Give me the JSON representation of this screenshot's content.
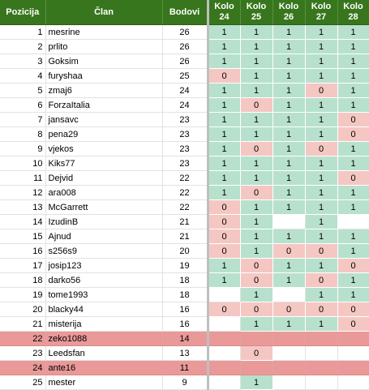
{
  "headers": {
    "position": "Pozicija",
    "member": "Član",
    "points": "Bodovi",
    "rounds": [
      {
        "top": "Kolo",
        "num": "24"
      },
      {
        "top": "Kolo",
        "num": "25"
      },
      {
        "top": "Kolo",
        "num": "26"
      },
      {
        "top": "Kolo",
        "num": "27"
      },
      {
        "top": "Kolo",
        "num": "28"
      }
    ]
  },
  "colors": {
    "header_bg": "#38761d",
    "win_bg": "#b7e1cd",
    "loss_bg": "#f4c7c3",
    "eliminated_bg": "#ea9999"
  },
  "rows": [
    {
      "pos": "1",
      "name": "mesrine",
      "pts": "26",
      "k": [
        "1",
        "1",
        "1",
        "1",
        "1"
      ],
      "elim": false
    },
    {
      "pos": "2",
      "name": "prlito",
      "pts": "26",
      "k": [
        "1",
        "1",
        "1",
        "1",
        "1"
      ],
      "elim": false
    },
    {
      "pos": "3",
      "name": "Goksim",
      "pts": "26",
      "k": [
        "1",
        "1",
        "1",
        "1",
        "1"
      ],
      "elim": false
    },
    {
      "pos": "4",
      "name": "furyshaa",
      "pts": "25",
      "k": [
        "0",
        "1",
        "1",
        "1",
        "1"
      ],
      "elim": false
    },
    {
      "pos": "5",
      "name": "zmaj6",
      "pts": "24",
      "k": [
        "1",
        "1",
        "1",
        "0",
        "1"
      ],
      "elim": false
    },
    {
      "pos": "6",
      "name": "ForzaItalia",
      "pts": "24",
      "k": [
        "1",
        "0",
        "1",
        "1",
        "1"
      ],
      "elim": false
    },
    {
      "pos": "7",
      "name": "jansavc",
      "pts": "23",
      "k": [
        "1",
        "1",
        "1",
        "1",
        "0"
      ],
      "elim": false
    },
    {
      "pos": "8",
      "name": "pena29",
      "pts": "23",
      "k": [
        "1",
        "1",
        "1",
        "1",
        "0"
      ],
      "elim": false
    },
    {
      "pos": "9",
      "name": "vjekos",
      "pts": "23",
      "k": [
        "1",
        "0",
        "1",
        "0",
        "1"
      ],
      "elim": false
    },
    {
      "pos": "10",
      "name": "Kiks77",
      "pts": "23",
      "k": [
        "1",
        "1",
        "1",
        "1",
        "1"
      ],
      "elim": false
    },
    {
      "pos": "11",
      "name": "Dejvid",
      "pts": "22",
      "k": [
        "1",
        "1",
        "1",
        "1",
        "0"
      ],
      "elim": false
    },
    {
      "pos": "12",
      "name": "ara008",
      "pts": "22",
      "k": [
        "1",
        "0",
        "1",
        "1",
        "1"
      ],
      "elim": false
    },
    {
      "pos": "13",
      "name": "McGarrett",
      "pts": "22",
      "k": [
        "0",
        "1",
        "1",
        "1",
        "1"
      ],
      "elim": false
    },
    {
      "pos": "14",
      "name": "IzudinB",
      "pts": "21",
      "k": [
        "0",
        "1",
        "",
        "1",
        ""
      ],
      "elim": false
    },
    {
      "pos": "15",
      "name": "Ajnud",
      "pts": "21",
      "k": [
        "0",
        "1",
        "1",
        "1",
        "1"
      ],
      "elim": false
    },
    {
      "pos": "16",
      "name": "s256s9",
      "pts": "20",
      "k": [
        "0",
        "1",
        "0",
        "0",
        "1"
      ],
      "elim": false
    },
    {
      "pos": "17",
      "name": "josip123",
      "pts": "19",
      "k": [
        "1",
        "0",
        "1",
        "1",
        "0"
      ],
      "elim": false
    },
    {
      "pos": "18",
      "name": "darko56",
      "pts": "18",
      "k": [
        "1",
        "0",
        "1",
        "0",
        "1"
      ],
      "elim": false
    },
    {
      "pos": "19",
      "name": "tome1993",
      "pts": "18",
      "k": [
        "",
        "1",
        "",
        "1",
        "1"
      ],
      "elim": false
    },
    {
      "pos": "20",
      "name": "blacky44",
      "pts": "16",
      "k": [
        "0",
        "0",
        "0",
        "0",
        "0"
      ],
      "elim": false
    },
    {
      "pos": "21",
      "name": "misterija",
      "pts": "16",
      "k": [
        "",
        "1",
        "1",
        "1",
        "0"
      ],
      "elim": false
    },
    {
      "pos": "22",
      "name": "zeko1088",
      "pts": "14",
      "k": [
        "",
        "",
        "",
        "",
        ""
      ],
      "elim": true
    },
    {
      "pos": "23",
      "name": "Leedsfan",
      "pts": "13",
      "k": [
        "",
        "0",
        "",
        "",
        ""
      ],
      "elim": false
    },
    {
      "pos": "24",
      "name": "ante16",
      "pts": "11",
      "k": [
        "",
        "",
        "",
        "",
        ""
      ],
      "elim": true
    },
    {
      "pos": "25",
      "name": "mester",
      "pts": "9",
      "k": [
        "",
        "1",
        "",
        "",
        ""
      ],
      "elim": false
    }
  ]
}
